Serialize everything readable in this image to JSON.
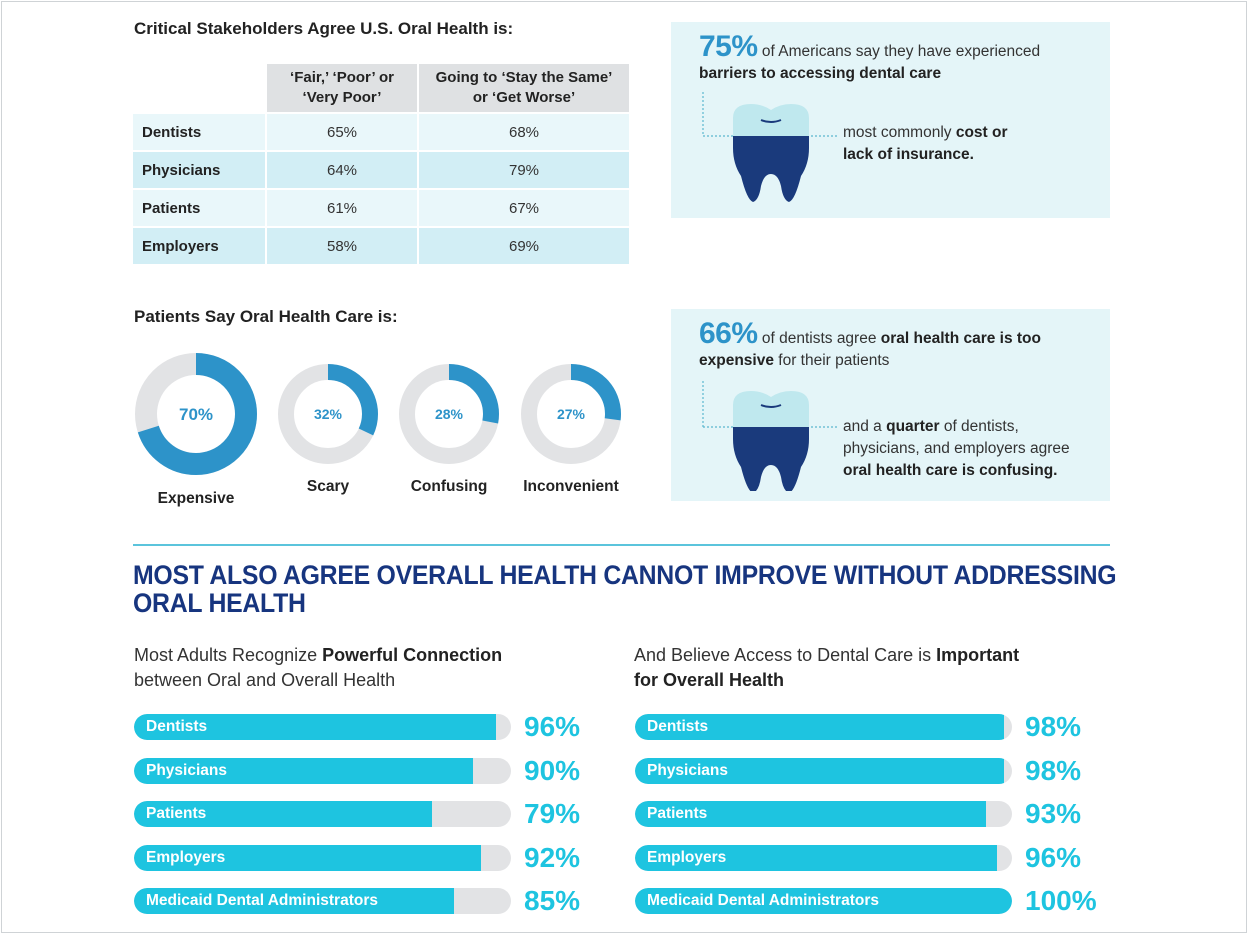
{
  "stakeholders": {
    "title": "Critical Stakeholders Agree U.S. Oral Health is:",
    "headers": [
      "‘Fair,’ ‘Poor’ or ‘Very Poor’",
      "Going to ‘Stay the Same’ or ‘Get Worse’"
    ],
    "header_lines": [
      [
        "‘Fair,’ ‘Poor’ or",
        "‘Very Poor’"
      ],
      [
        "Going to ‘Stay the Same’",
        "or ‘Get Worse’"
      ]
    ],
    "rows": [
      {
        "name": "Dentists",
        "fair_poor": "65%",
        "same_worse": "68%"
      },
      {
        "name": "Physicians",
        "fair_poor": "64%",
        "same_worse": "79%"
      },
      {
        "name": "Patients",
        "fair_poor": "61%",
        "same_worse": "67%"
      },
      {
        "name": "Employers",
        "fair_poor": "58%",
        "same_worse": "69%"
      }
    ]
  },
  "fact1": {
    "big": "75%",
    "text1": "of Americans say they have experienced",
    "text_bold": "barriers to accessing dental care",
    "follow_pre": "most commonly ",
    "follow_bold1": "cost or",
    "follow_bold2": "lack of insurance."
  },
  "fact2": {
    "big": "66%",
    "text1": "of dentists agree ",
    "text_bold": "oral health care is too",
    "text_bold2": "expensive",
    "text2": " for their patients",
    "follow_l1a": "and a ",
    "follow_l1b": "quarter",
    "follow_l1c": " of dentists,",
    "follow_l2": "physicians, and employers agree",
    "follow_l3": "oral health care is confusing."
  },
  "patients_care": {
    "title": "Patients Say Oral Health Care is:"
  },
  "headline": {
    "line1": "MOST ALSO AGREE OVERALL HEALTH CANNOT IMPROVE WITHOUT ADDRESSING",
    "line2": "ORAL HEALTH"
  },
  "left_sub": {
    "pre": "Most Adults Recognize ",
    "bold": "Powerful Connection",
    "post": "between Oral and Overall Health"
  },
  "right_sub": {
    "pre": "And Believe Access to Dental Care is ",
    "bold": "Important",
    "post": "for Overall Health"
  },
  "colors": {
    "accent_blue": "#2d93c9",
    "bar_cyan": "#1ec4e0",
    "navy": "#17357f",
    "panel_bg": "#e4f5f8",
    "tooth_navy": "#1a3a7c",
    "tooth_light": "#bfe8ee"
  },
  "chart_data": [
    {
      "type": "pie",
      "title": "Patients Say Oral Health Care is:",
      "categories": [
        "Expensive",
        "Scary",
        "Confusing",
        "Inconvenient"
      ],
      "values": [
        70,
        32,
        28,
        27
      ],
      "labels": [
        "70%",
        "32%",
        "28%",
        "27%"
      ],
      "unit": "%"
    },
    {
      "type": "bar",
      "orientation": "horizontal",
      "title": "Most Adults Recognize Powerful Connection between Oral and Overall Health",
      "categories": [
        "Dentists",
        "Physicians",
        "Patients",
        "Employers",
        "Medicaid Dental Administrators"
      ],
      "values": [
        96,
        90,
        79,
        92,
        85
      ],
      "labels": [
        "96%",
        "90%",
        "79%",
        "92%",
        "85%"
      ],
      "xlim": [
        0,
        100
      ]
    },
    {
      "type": "bar",
      "orientation": "horizontal",
      "title": "And Believe Access to Dental Care is Important for Overall Health",
      "categories": [
        "Dentists",
        "Physicians",
        "Patients",
        "Employers",
        "Medicaid Dental Administrators"
      ],
      "values": [
        98,
        98,
        93,
        96,
        100
      ],
      "labels": [
        "98%",
        "98%",
        "93%",
        "96%",
        "100%"
      ],
      "xlim": [
        0,
        100
      ]
    }
  ]
}
